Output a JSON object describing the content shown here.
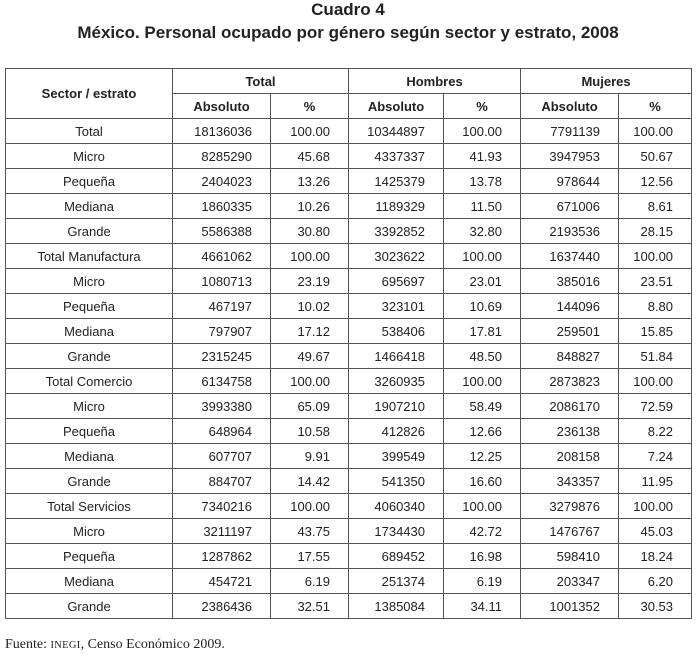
{
  "header": {
    "title": "Cuadro 4",
    "subtitle": "México. Personal ocupado por género según sector y estrato, 2008"
  },
  "table": {
    "stub_header": "Sector / estrato",
    "groups": [
      "Total",
      "Hombres",
      "Mujeres"
    ],
    "subheaders": [
      "Absoluto",
      "%",
      "Absoluto",
      "%",
      "Absoluto",
      "%"
    ],
    "rows": [
      [
        "Total",
        "18136036",
        "100.00",
        "10344897",
        "100.00",
        "7791139",
        "100.00"
      ],
      [
        "Micro",
        "8285290",
        "45.68",
        "4337337",
        "41.93",
        "3947953",
        "50.67"
      ],
      [
        "Pequeña",
        "2404023",
        "13.26",
        "1425379",
        "13.78",
        "978644",
        "12.56"
      ],
      [
        "Mediana",
        "1860335",
        "10.26",
        "1189329",
        "11.50",
        "671006",
        "8.61"
      ],
      [
        "Grande",
        "5586388",
        "30.80",
        "3392852",
        "32.80",
        "2193536",
        "28.15"
      ],
      [
        "Total Manufactura",
        "4661062",
        "100.00",
        "3023622",
        "100.00",
        "1637440",
        "100.00"
      ],
      [
        "Micro",
        "1080713",
        "23.19",
        "695697",
        "23.01",
        "385016",
        "23.51"
      ],
      [
        "Pequeña",
        "467197",
        "10.02",
        "323101",
        "10.69",
        "144096",
        "8.80"
      ],
      [
        "Mediana",
        "797907",
        "17.12",
        "538406",
        "17.81",
        "259501",
        "15.85"
      ],
      [
        "Grande",
        "2315245",
        "49.67",
        "1466418",
        "48.50",
        "848827",
        "51.84"
      ],
      [
        "Total Comercio",
        "6134758",
        "100.00",
        "3260935",
        "100.00",
        "2873823",
        "100.00"
      ],
      [
        "Micro",
        "3993380",
        "65.09",
        "1907210",
        "58.49",
        "2086170",
        "72.59"
      ],
      [
        "Pequeña",
        "648964",
        "10.58",
        "412826",
        "12.66",
        "236138",
        "8.22"
      ],
      [
        "Mediana",
        "607707",
        "9.91",
        "399549",
        "12.25",
        "208158",
        "7.24"
      ],
      [
        "Grande",
        "884707",
        "14.42",
        "541350",
        "16.60",
        "343357",
        "11.95"
      ],
      [
        "Total Servicios",
        "7340216",
        "100.00",
        "4060340",
        "100.00",
        "3279876",
        "100.00"
      ],
      [
        "Micro",
        "3211197",
        "43.75",
        "1734430",
        "42.72",
        "1476767",
        "45.03"
      ],
      [
        "Pequeña",
        "1287862",
        "17.55",
        "689452",
        "16.98",
        "598410",
        "18.24"
      ],
      [
        "Mediana",
        "454721",
        "6.19",
        "251374",
        "6.19",
        "203347",
        "6.20"
      ],
      [
        "Grande",
        "2386436",
        "32.51",
        "1385084",
        "34.11",
        "1001352",
        "30.53"
      ]
    ]
  },
  "footer": {
    "label": "Fuente:",
    "org": "INEGI",
    "source": ", Censo Económico 2009."
  }
}
